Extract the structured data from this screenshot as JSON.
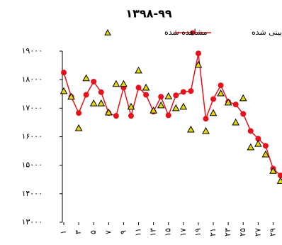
{
  "chart_data": {
    "type": "line",
    "title": "۱۳۹۸-۹۹",
    "categories": [
      "۱",
      null,
      "۳",
      null,
      "۵",
      null,
      "۷",
      null,
      "۹",
      null,
      "۱۱",
      null,
      "۱۳",
      null,
      "۱۵",
      null,
      "۱۷",
      null,
      "۱۹",
      null,
      "۲۱",
      null,
      "۲۳",
      null,
      "۲۵",
      null,
      "۲۷",
      null,
      "۲۹",
      null
    ],
    "series": [
      {
        "name": "پیش‌بینی شده",
        "color": "#e8101a",
        "marker": "circle",
        "line": true,
        "values": [
          18250,
          17400,
          16830,
          17470,
          17930,
          17560,
          16830,
          16730,
          17720,
          16730,
          17720,
          17470,
          16880,
          17400,
          16750,
          17450,
          17570,
          17600,
          18920,
          16630,
          17320,
          17800,
          17220,
          17130,
          16800,
          16200,
          15930,
          15680,
          14880,
          14640
        ]
      },
      {
        "name": "مشاهده شده",
        "color": "#e6d800",
        "marker": "triangle",
        "line": false,
        "values": [
          17600,
          17400,
          16300,
          18050,
          17170,
          17170,
          16850,
          17850,
          17850,
          17050,
          18320,
          17720,
          16920,
          17100,
          17420,
          17000,
          17050,
          16250,
          18520,
          16200,
          16830,
          17520,
          17200,
          16500,
          17350,
          15630,
          15750,
          15380,
          14800,
          14450
        ]
      }
    ],
    "ylim": [
      13000,
      19000
    ],
    "yticks": [
      {
        "value": 13000,
        "label": "۱۳۰۰۰"
      },
      {
        "value": 14000,
        "label": "۱۴۰۰۰"
      },
      {
        "value": 15000,
        "label": "۱۵۰۰۰"
      },
      {
        "value": 16000,
        "label": "۱۶۰۰۰"
      },
      {
        "value": 17000,
        "label": "۱۷۰۰۰"
      },
      {
        "value": 18000,
        "label": "۱۸۰۰۰"
      },
      {
        "value": 19000,
        "label": "۱۹۰۰۰"
      }
    ]
  }
}
